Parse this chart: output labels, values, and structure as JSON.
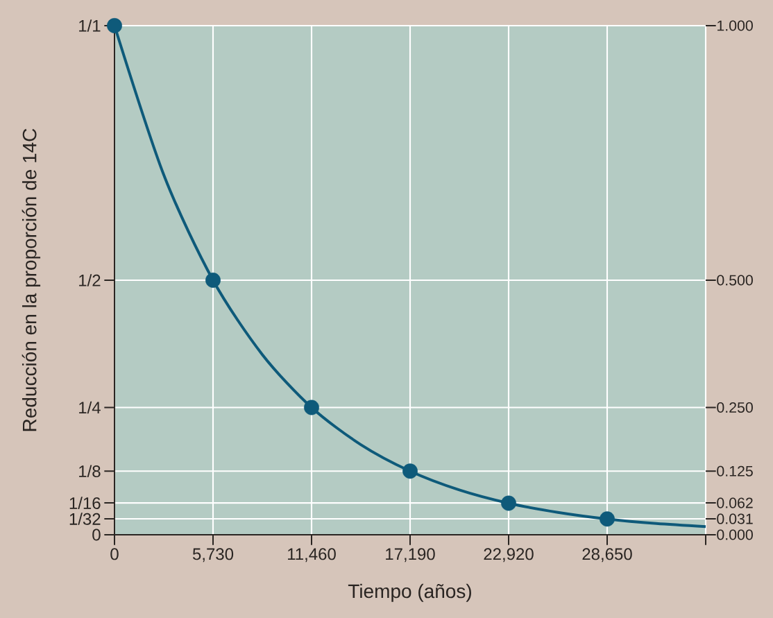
{
  "chart_data": {
    "type": "line",
    "xlabel": "Tiempo (años)",
    "ylabel": "Reducción en la proporción de 14C",
    "xlim": [
      0,
      34380
    ],
    "xticks": [
      0,
      {
        "value": 5730,
        "label": "5,730"
      },
      {
        "value": 11460,
        "label": "11,460"
      },
      {
        "value": 17190,
        "label": "17,190"
      },
      {
        "value": 22920,
        "label": "22,920"
      },
      {
        "value": 28650,
        "label": "28,650"
      },
      {
        "value": 34380,
        "label": null
      }
    ],
    "ylim": [
      0,
      1
    ],
    "yticks": [
      0,
      {
        "value": 0.03125,
        "label": "1/32"
      },
      {
        "value": 0.0625,
        "label": "1/16"
      },
      {
        "value": 0.125,
        "label": "1/8"
      },
      {
        "value": 0.25,
        "label": "1/4"
      },
      {
        "value": 0.5,
        "label": "1/2"
      },
      {
        "value": 1,
        "label": "1/1"
      }
    ],
    "y2lim": [
      0,
      1
    ],
    "y2ticks": [
      {
        "value": 0,
        "label": "0.000"
      },
      {
        "value": 0.03125,
        "label": "0.031"
      },
      {
        "value": 0.0625,
        "label": "0.062"
      },
      {
        "value": 0.125,
        "label": "0.125"
      },
      {
        "value": 0.25,
        "label": "0.250"
      },
      {
        "value": 0.5,
        "label": "0.500"
      },
      {
        "value": 1,
        "label": "1.000"
      }
    ],
    "grid": true,
    "marker": "circle",
    "series": [
      {
        "color": "#0e5a7a",
        "marker": "none",
        "x": [
          0,
          2865,
          5730,
          8595,
          11460,
          14325,
          17190,
          20055,
          22920,
          25785,
          28650,
          31515,
          34380
        ],
        "values": [
          1,
          0.707,
          0.5,
          0.354,
          0.25,
          0.177,
          0.125,
          0.088,
          0.062,
          0.044,
          0.031,
          0.022,
          0.016
        ]
      },
      {
        "type": "scatter",
        "color": "#0e5a7a",
        "x": [
          0,
          5730,
          11460,
          17190,
          22920,
          28650
        ],
        "values": [
          1,
          0.5,
          0.25,
          0.125,
          0.062,
          0.031
        ]
      }
    ]
  }
}
